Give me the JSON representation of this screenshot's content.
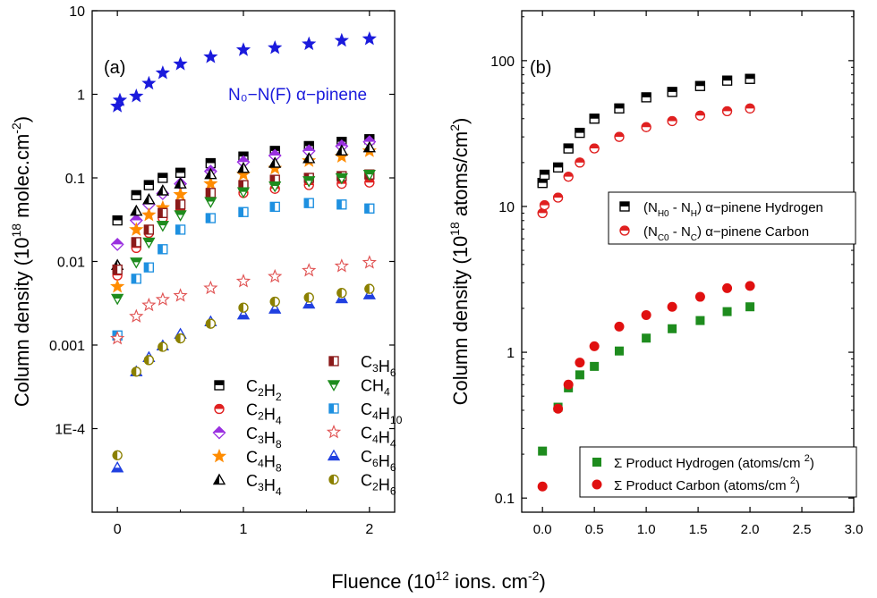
{
  "figure": {
    "xlabel_main": "Fluence (10",
    "xlabel_sup": "12",
    "xlabel_rest": " ions. cm",
    "xlabel_sup2": "-2",
    "xlabel_end": ")"
  },
  "chart_data": [
    {
      "panel": "(a)",
      "type": "scatter",
      "yscale": "log",
      "xlim": [
        -0.2,
        2.2
      ],
      "ylim": [
        1e-05,
        10
      ],
      "xticks": [
        0,
        1,
        2
      ],
      "yticks": [
        {
          "value": 0.0001,
          "label": "1E-4"
        },
        {
          "value": 0.001,
          "label": "0.001"
        },
        {
          "value": 0.01,
          "label": "0.01"
        },
        {
          "value": 0.1,
          "label": "0.1"
        },
        {
          "value": 1,
          "label": "1"
        },
        {
          "value": 10,
          "label": "10"
        }
      ],
      "ylabel": "Column density (10",
      "ylabel_sup": "18",
      "ylabel_rest": " molec.cm",
      "ylabel_sup2": "-2",
      "ylabel_end": ")",
      "annotation": {
        "text": "N₀−N(F)  α−pinene",
        "color": "#1a1adc"
      },
      "series": [
        {
          "name": "α-pinene",
          "legend": false,
          "marker": "star",
          "color": "#1a1adc",
          "x": [
            0,
            0.02,
            0.15,
            0.25,
            0.36,
            0.5,
            0.74,
            1.0,
            1.25,
            1.52,
            1.78,
            2.0
          ],
          "y": [
            0.72,
            0.85,
            0.95,
            1.35,
            1.8,
            2.3,
            2.8,
            3.4,
            3.6,
            4.0,
            4.4,
            4.6
          ]
        },
        {
          "name": "C2H2",
          "marker": "square-half-top",
          "color": "#000000",
          "x": [
            0,
            0.15,
            0.25,
            0.36,
            0.5,
            0.74,
            1.0,
            1.25,
            1.52,
            1.78,
            2.0
          ],
          "y": [
            0.031,
            0.062,
            0.082,
            0.1,
            0.115,
            0.15,
            0.18,
            0.21,
            0.24,
            0.27,
            0.29
          ]
        },
        {
          "name": "C2H4",
          "marker": "circle-half-top",
          "color": "#e02020",
          "x": [
            0,
            0.15,
            0.25,
            0.36,
            0.5,
            0.74,
            1.0,
            1.25,
            1.52,
            1.78,
            2.0
          ],
          "y": [
            0.0068,
            0.0145,
            0.022,
            0.033,
            0.04,
            0.058,
            0.066,
            0.074,
            0.082,
            0.085,
            0.088
          ]
        },
        {
          "name": "C3H8",
          "marker": "diamond-half-top",
          "color": "#9a30e0",
          "x": [
            0,
            0.15,
            0.25,
            0.36,
            0.5,
            0.74,
            1.0,
            1.25,
            1.52,
            1.78,
            2.0
          ],
          "y": [
            0.016,
            0.031,
            0.048,
            0.065,
            0.085,
            0.12,
            0.155,
            0.185,
            0.21,
            0.24,
            0.27
          ]
        },
        {
          "name": "C4H8",
          "marker": "star",
          "color": "#ff8c00",
          "x": [
            0,
            0.15,
            0.25,
            0.36,
            0.5,
            0.74,
            1.0,
            1.25,
            1.52,
            1.78,
            2.0
          ],
          "y": [
            0.005,
            0.024,
            0.036,
            0.044,
            0.063,
            0.085,
            0.11,
            0.13,
            0.16,
            0.18,
            0.21
          ]
        },
        {
          "name": "C3H4",
          "marker": "triangle-half-left",
          "color": "#000000",
          "x": [
            0,
            0.15,
            0.25,
            0.36,
            0.5,
            0.74,
            1.0,
            1.25,
            1.52,
            1.78,
            2.0
          ],
          "y": [
            0.009,
            0.04,
            0.055,
            0.07,
            0.085,
            0.11,
            0.13,
            0.15,
            0.17,
            0.21,
            0.23
          ]
        },
        {
          "name": "C3H6",
          "marker": "square-half-left",
          "color": "#8b1a1a",
          "x": [
            0,
            0.15,
            0.25,
            0.36,
            0.5,
            0.74,
            1.0,
            1.25,
            1.52,
            1.78,
            2.0
          ],
          "y": [
            0.008,
            0.017,
            0.024,
            0.038,
            0.048,
            0.066,
            0.082,
            0.095,
            0.1,
            0.105,
            0.11
          ]
        },
        {
          "name": "CH4",
          "marker": "triangle-down-half-top",
          "color": "#1e8c1e",
          "x": [
            0,
            0.15,
            0.25,
            0.36,
            0.5,
            0.74,
            1.0,
            1.25,
            1.52,
            1.78,
            2.0
          ],
          "y": [
            0.0036,
            0.0098,
            0.017,
            0.027,
            0.036,
            0.052,
            0.068,
            0.08,
            0.092,
            0.1,
            0.11
          ]
        },
        {
          "name": "C4H10",
          "marker": "square-half-left",
          "color": "#1e90e0",
          "x": [
            0,
            0.15,
            0.25,
            0.36,
            0.5,
            0.74,
            1.0,
            1.25,
            1.52,
            1.78,
            2.0
          ],
          "y": [
            0.0013,
            0.0062,
            0.0085,
            0.014,
            0.024,
            0.033,
            0.039,
            0.045,
            0.05,
            0.048,
            0.043
          ]
        },
        {
          "name": "C4H4",
          "marker": "star-open",
          "color": "#e05050",
          "x": [
            0,
            0.15,
            0.25,
            0.36,
            0.5,
            0.74,
            1.0,
            1.25,
            1.52,
            1.78,
            2.0
          ],
          "y": [
            0.0012,
            0.0022,
            0.003,
            0.0035,
            0.0039,
            0.0048,
            0.0058,
            0.0066,
            0.0078,
            0.0088,
            0.0097
          ]
        },
        {
          "name": "C6H6",
          "marker": "triangle-half-bottom",
          "color": "#2040e0",
          "x": [
            0,
            0.15,
            0.25,
            0.36,
            0.5,
            0.74,
            1.0,
            1.25,
            1.52,
            1.78,
            2.0
          ],
          "y": [
            3.4e-05,
            0.00048,
            0.00071,
            0.00098,
            0.00135,
            0.0019,
            0.0023,
            0.0027,
            0.0031,
            0.0036,
            0.004
          ]
        },
        {
          "name": "C2H6",
          "marker": "circle-half-left",
          "color": "#8b8000",
          "x": [
            0,
            0.15,
            0.25,
            0.36,
            0.5,
            0.74,
            1.0,
            1.25,
            1.52,
            1.78,
            2.0
          ],
          "y": [
            4.8e-05,
            0.00048,
            0.00066,
            0.00095,
            0.0012,
            0.0018,
            0.0028,
            0.0033,
            0.0037,
            0.0042,
            0.0047
          ]
        }
      ],
      "legend": {
        "col1": [
          {
            "series": "C2H2",
            "base": "C",
            "s1": "2",
            "mid": "H",
            "s2": "2"
          },
          {
            "series": "C2H4",
            "base": "C",
            "s1": "2",
            "mid": "H",
            "s2": "4"
          },
          {
            "series": "C3H8",
            "base": "C",
            "s1": "3",
            "mid": "H",
            "s2": "8"
          },
          {
            "series": "C4H8",
            "base": "C",
            "s1": "4",
            "mid": "H",
            "s2": "8"
          },
          {
            "series": "C3H4",
            "base": "C",
            "s1": "3",
            "mid": "H",
            "s2": "4"
          }
        ],
        "col2": [
          {
            "series": "C3H6",
            "base": "C",
            "s1": "3",
            "mid": "H",
            "s2": "6"
          },
          {
            "series": "CH4",
            "base": "CH",
            "s1": "4",
            "mid": "",
            "s2": ""
          },
          {
            "series": "C4H10",
            "base": "C",
            "s1": "4",
            "mid": "H",
            "s2": "10"
          },
          {
            "series": "C4H4",
            "base": "C",
            "s1": "4",
            "mid": "H",
            "s2": "4"
          },
          {
            "series": "C6H6",
            "base": "C",
            "s1": "6",
            "mid": "H",
            "s2": "6"
          },
          {
            "series": "C2H6",
            "base": "C",
            "s1": "2",
            "mid": "H",
            "s2": "6"
          }
        ]
      }
    },
    {
      "panel": "(b)",
      "type": "scatter",
      "yscale": "log",
      "xlim": [
        -0.2,
        3.0
      ],
      "ylim": [
        0.08,
        220
      ],
      "xticks": [
        0.0,
        0.5,
        1.0,
        1.5,
        2.0,
        2.5,
        3.0
      ],
      "xtick_labels": [
        "0.0",
        "0.5",
        "1.0",
        "1.5",
        "2.0",
        "2.5",
        "3.0"
      ],
      "yticks": [
        {
          "value": 0.1,
          "label": "0.1"
        },
        {
          "value": 1,
          "label": "1"
        },
        {
          "value": 10,
          "label": "10"
        },
        {
          "value": 100,
          "label": "100"
        }
      ],
      "ylabel": "Column density (10",
      "ylabel_sup": "18",
      "ylabel_rest": " atoms/cm",
      "ylabel_sup2": "2",
      "ylabel_end": ")",
      "series": [
        {
          "name": "H",
          "marker": "square-half-top",
          "color": "#000000",
          "x": [
            0,
            0.02,
            0.15,
            0.25,
            0.36,
            0.5,
            0.74,
            1.0,
            1.25,
            1.52,
            1.78,
            2.0
          ],
          "y": [
            14.5,
            16.5,
            18.5,
            25,
            32,
            40,
            47,
            56,
            61,
            67,
            73,
            75
          ]
        },
        {
          "name": "C",
          "marker": "circle-half-top",
          "color": "#e02020",
          "x": [
            0,
            0.02,
            0.15,
            0.25,
            0.36,
            0.5,
            0.74,
            1.0,
            1.25,
            1.52,
            1.78,
            2.0
          ],
          "y": [
            9.0,
            10.2,
            11.5,
            16,
            20,
            25,
            30,
            35,
            38.5,
            42,
            45,
            47
          ]
        },
        {
          "name": "PH",
          "marker": "square-filled",
          "color": "#1e8c1e",
          "x": [
            0,
            0.15,
            0.25,
            0.36,
            0.5,
            0.74,
            1.0,
            1.25,
            1.52,
            1.78,
            2.0
          ],
          "y": [
            0.21,
            0.42,
            0.57,
            0.7,
            0.8,
            1.02,
            1.25,
            1.45,
            1.65,
            1.9,
            2.05
          ]
        },
        {
          "name": "PC",
          "marker": "circle-filled",
          "color": "#e01010",
          "x": [
            0,
            0.15,
            0.25,
            0.36,
            0.5,
            0.74,
            1.0,
            1.25,
            1.52,
            1.78,
            2.0
          ],
          "y": [
            0.12,
            0.41,
            0.6,
            0.85,
            1.1,
            1.5,
            1.8,
            2.05,
            2.4,
            2.75,
            2.85
          ]
        }
      ],
      "legend1": [
        {
          "series": "H",
          "t1": "(N",
          "s1": "H0",
          "t2": " - N",
          "s2": "H",
          "t3": ") α−pinene Hydrogen"
        },
        {
          "series": "C",
          "t1": "(N",
          "s1": "C0",
          "t2": " - N",
          "s2": "C",
          "t3": ") α−pinene Carbon"
        }
      ],
      "legend2": [
        {
          "series": "PH",
          "t1": "Σ Product Hydrogen (atoms/cm ",
          "sup": "2",
          "t2": ")"
        },
        {
          "series": "PC",
          "t1": "Σ Product Carbon (atoms/cm ",
          "sup": "2",
          "t2": ")"
        }
      ]
    }
  ]
}
